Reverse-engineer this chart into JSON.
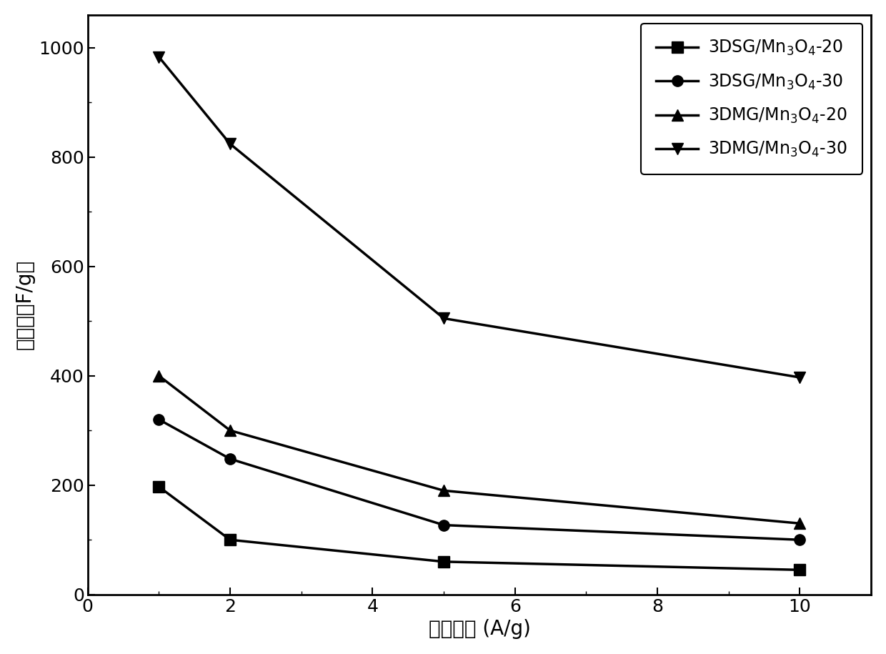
{
  "x": [
    1,
    2,
    5,
    10
  ],
  "series": [
    {
      "label_math": "3DSG/Mn$_3$O$_4$-20",
      "y": [
        197,
        100,
        60,
        45
      ],
      "marker": "s",
      "color": "#000000"
    },
    {
      "label_math": "3DSG/Mn$_3$O$_4$-30",
      "y": [
        320,
        248,
        127,
        100
      ],
      "marker": "o",
      "color": "#000000"
    },
    {
      "label_math": "3DMG/Mn$_3$O$_4$-20",
      "y": [
        400,
        300,
        190,
        130
      ],
      "marker": "^",
      "color": "#000000"
    },
    {
      "label_math": "3DMG/Mn$_3$O$_4$-30",
      "y": [
        983,
        824,
        505,
        397
      ],
      "marker": "v",
      "color": "#000000"
    }
  ],
  "xlabel": "放电电流 (A/g)",
  "ylabel": "比容量（F/g）",
  "xlim": [
    0,
    11
  ],
  "ylim": [
    0,
    1060
  ],
  "xticks": [
    0,
    2,
    4,
    6,
    8,
    10
  ],
  "yticks": [
    0,
    200,
    400,
    600,
    800,
    1000
  ],
  "linewidth": 2.5,
  "markersize": 11,
  "legend_fontsize": 17,
  "axis_fontsize": 20,
  "tick_fontsize": 18,
  "background_color": "#ffffff"
}
